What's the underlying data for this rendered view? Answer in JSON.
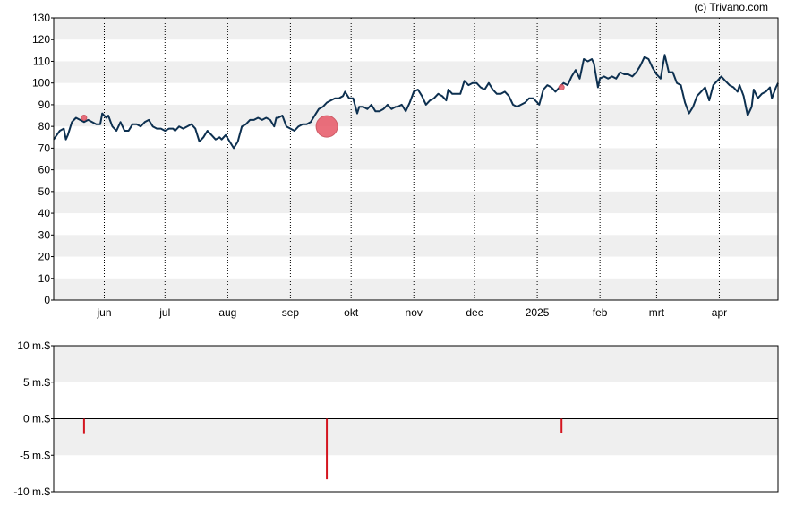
{
  "copyright": "(c) Trivano.com",
  "colors": {
    "price_line": "#0d3050",
    "marker_fill": "#e8606e",
    "bar": "#d4151f",
    "band": "#efefef",
    "frame": "#000000"
  },
  "chart_data": [
    {
      "type": "line",
      "title": "",
      "ylim": [
        0,
        130
      ],
      "y_ticks": [
        "0",
        "10",
        "20",
        "30",
        "40",
        "50",
        "60",
        "70",
        "80",
        "90",
        "100",
        "110",
        "120",
        "130"
      ],
      "x_ticks": [
        {
          "label": "jun",
          "x": 25
        },
        {
          "label": "jul",
          "x": 55
        },
        {
          "label": "aug",
          "x": 86
        },
        {
          "label": "sep",
          "x": 117
        },
        {
          "label": "okt",
          "x": 147
        },
        {
          "label": "nov",
          "x": 178
        },
        {
          "label": "dec",
          "x": 208
        },
        {
          "label": "2025",
          "x": 239
        },
        {
          "label": "feb",
          "x": 270
        },
        {
          "label": "mrt",
          "x": 298
        },
        {
          "label": "apr",
          "x": 329
        }
      ],
      "xlim": [
        0,
        358
      ],
      "grid": "vertical dotted at month ticks, horizontal alternating bands",
      "series": [
        {
          "points": [
            [
              0,
              74
            ],
            [
              3,
              78
            ],
            [
              5,
              79
            ],
            [
              6,
              74
            ],
            [
              7,
              76
            ],
            [
              9,
              82
            ],
            [
              11,
              84
            ],
            [
              13,
              83
            ],
            [
              15,
              82
            ],
            [
              17,
              83
            ],
            [
              19,
              82
            ],
            [
              21,
              81
            ],
            [
              23,
              81
            ],
            [
              24,
              86
            ],
            [
              26,
              84
            ],
            [
              27,
              85
            ],
            [
              29,
              80
            ],
            [
              31,
              78
            ],
            [
              33,
              82
            ],
            [
              35,
              78
            ],
            [
              37,
              78
            ],
            [
              39,
              81
            ],
            [
              41,
              81
            ],
            [
              43,
              80
            ],
            [
              45,
              82
            ],
            [
              47,
              83
            ],
            [
              49,
              80
            ],
            [
              51,
              79
            ],
            [
              53,
              79
            ],
            [
              55,
              78
            ],
            [
              57,
              79
            ],
            [
              59,
              79
            ],
            [
              60,
              78
            ],
            [
              62,
              80
            ],
            [
              64,
              79
            ],
            [
              66,
              80
            ],
            [
              68,
              81
            ],
            [
              70,
              79
            ],
            [
              72,
              73
            ],
            [
              74,
              75
            ],
            [
              76,
              78
            ],
            [
              78,
              76
            ],
            [
              80,
              74
            ],
            [
              82,
              75
            ],
            [
              83,
              74
            ],
            [
              85,
              76
            ],
            [
              87,
              73
            ],
            [
              89,
              70
            ],
            [
              91,
              73
            ],
            [
              93,
              80
            ],
            [
              95,
              81
            ],
            [
              97,
              83
            ],
            [
              99,
              83
            ],
            [
              101,
              84
            ],
            [
              103,
              83
            ],
            [
              105,
              84
            ],
            [
              107,
              83
            ],
            [
              109,
              80
            ],
            [
              110,
              84
            ],
            [
              111,
              84
            ],
            [
              113,
              85
            ],
            [
              115,
              80
            ],
            [
              117,
              79
            ],
            [
              119,
              78
            ],
            [
              121,
              80
            ],
            [
              123,
              81
            ],
            [
              125,
              81
            ],
            [
              127,
              82
            ],
            [
              129,
              85
            ],
            [
              131,
              88
            ],
            [
              133,
              89
            ],
            [
              135,
              91
            ],
            [
              137,
              92
            ],
            [
              139,
              93
            ],
            [
              141,
              93
            ],
            [
              143,
              94
            ],
            [
              144,
              96
            ],
            [
              146,
              93
            ],
            [
              148,
              93
            ],
            [
              150,
              86
            ],
            [
              151,
              89
            ],
            [
              153,
              89
            ],
            [
              155,
              88
            ],
            [
              157,
              90
            ],
            [
              159,
              87
            ],
            [
              161,
              87
            ],
            [
              163,
              88
            ],
            [
              165,
              90
            ],
            [
              167,
              88
            ],
            [
              169,
              89
            ],
            [
              170,
              89
            ],
            [
              172,
              90
            ],
            [
              174,
              87
            ],
            [
              176,
              91
            ],
            [
              178,
              96
            ],
            [
              180,
              97
            ],
            [
              182,
              94
            ],
            [
              184,
              90
            ],
            [
              186,
              92
            ],
            [
              188,
              93
            ],
            [
              190,
              95
            ],
            [
              192,
              94
            ],
            [
              194,
              92
            ],
            [
              195,
              97
            ],
            [
              197,
              95
            ],
            [
              199,
              95
            ],
            [
              201,
              95
            ],
            [
              203,
              101
            ],
            [
              205,
              99
            ],
            [
              207,
              100
            ],
            [
              209,
              100
            ],
            [
              211,
              98
            ],
            [
              213,
              97
            ],
            [
              215,
              100
            ],
            [
              217,
              97
            ],
            [
              219,
              95
            ],
            [
              221,
              95
            ],
            [
              223,
              96
            ],
            [
              225,
              94
            ],
            [
              227,
              90
            ],
            [
              229,
              89
            ],
            [
              231,
              90
            ],
            [
              233,
              91
            ],
            [
              235,
              93
            ],
            [
              237,
              93
            ],
            [
              239,
              91
            ],
            [
              240,
              90
            ],
            [
              242,
              97
            ],
            [
              244,
              99
            ],
            [
              246,
              98
            ],
            [
              248,
              96
            ],
            [
              250,
              98
            ],
            [
              252,
              100
            ],
            [
              254,
              99
            ],
            [
              256,
              103
            ],
            [
              258,
              106
            ],
            [
              260,
              102
            ],
            [
              262,
              111
            ],
            [
              264,
              110
            ],
            [
              266,
              111
            ],
            [
              267,
              109
            ],
            [
              269,
              98
            ],
            [
              270,
              102
            ],
            [
              272,
              103
            ],
            [
              274,
              102
            ],
            [
              276,
              103
            ],
            [
              278,
              102
            ],
            [
              280,
              105
            ],
            [
              282,
              104
            ],
            [
              284,
              104
            ],
            [
              286,
              103
            ],
            [
              288,
              105
            ],
            [
              290,
              108
            ],
            [
              292,
              112
            ],
            [
              294,
              111
            ],
            [
              296,
              107
            ],
            [
              298,
              104
            ],
            [
              300,
              102
            ],
            [
              302,
              113
            ],
            [
              304,
              105
            ],
            [
              306,
              105
            ],
            [
              308,
              100
            ],
            [
              310,
              99
            ],
            [
              312,
              91
            ],
            [
              314,
              86
            ],
            [
              316,
              89
            ],
            [
              318,
              94
            ],
            [
              320,
              96
            ],
            [
              322,
              98
            ],
            [
              324,
              92
            ],
            [
              326,
              99
            ],
            [
              328,
              101
            ],
            [
              330,
              103
            ],
            [
              332,
              101
            ],
            [
              334,
              99
            ],
            [
              336,
              98
            ],
            [
              338,
              96
            ],
            [
              339,
              99
            ],
            [
              341,
              94
            ],
            [
              343,
              85
            ],
            [
              345,
              89
            ],
            [
              346,
              97
            ],
            [
              348,
              93
            ],
            [
              350,
              95
            ],
            [
              352,
              96
            ],
            [
              354,
              98
            ],
            [
              355,
              93
            ],
            [
              357,
              98
            ],
            [
              358,
              100
            ]
          ]
        }
      ],
      "markers": [
        {
          "x": 15,
          "y": 84,
          "size": "small"
        },
        {
          "x": 135,
          "y": 80,
          "size": "large"
        },
        {
          "x": 251,
          "y": 98,
          "size": "small"
        }
      ]
    },
    {
      "type": "bar",
      "title": "",
      "ylim": [
        -10,
        10
      ],
      "y_ticks": [
        "10 m.$",
        "5 m.$",
        "0 m.$",
        "-5 m.$",
        "-10 m.$"
      ],
      "xlim": [
        0,
        358
      ],
      "bars": [
        {
          "x": 15,
          "value": -2.1
        },
        {
          "x": 135,
          "value": -8.3
        },
        {
          "x": 251,
          "value": -2.0
        }
      ]
    }
  ]
}
